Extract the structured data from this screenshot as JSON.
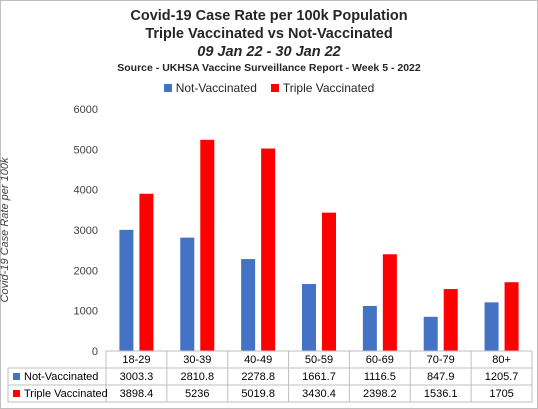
{
  "chart_data": {
    "type": "bar",
    "title": "Covid-19 Case Rate per 100k Population",
    "subtitle": "Triple Vaccinated vs Not-Vaccinated",
    "date_range": "09 Jan 22 - 30 Jan 22",
    "source": "Source - UKHSA Vaccine Surveillance Report - Week 5 - 2022",
    "ylabel": "Covid-19 Case Rate per 100k",
    "xlabel": "",
    "ylim": [
      0,
      6000
    ],
    "yticks": [
      "0",
      "1000",
      "2000",
      "3000",
      "4000",
      "5000",
      "6000"
    ],
    "grid": false,
    "legend_position": "top",
    "data_table": true,
    "categories": [
      "18-29",
      "30-39",
      "40-49",
      "50-59",
      "60-69",
      "70-79",
      "80+"
    ],
    "series": [
      {
        "name": "Not-Vaccinated",
        "color": "#4472c4",
        "values": [
          3003.3,
          2810.8,
          2278.8,
          1661.7,
          1116.5,
          847.9,
          1205.7
        ],
        "labels": [
          "3003.3",
          "2810.8",
          "2278.8",
          "1661.7",
          "1116.5",
          "847.9",
          "1205.7"
        ]
      },
      {
        "name": "Triple Vaccinated",
        "color": "#ff0000",
        "values": [
          3898.4,
          5236,
          5019.8,
          3430.4,
          2398.2,
          1536.1,
          1705
        ],
        "labels": [
          "3898.4",
          "5236",
          "5019.8",
          "3430.4",
          "2398.2",
          "1536.1",
          "1705"
        ]
      }
    ]
  }
}
